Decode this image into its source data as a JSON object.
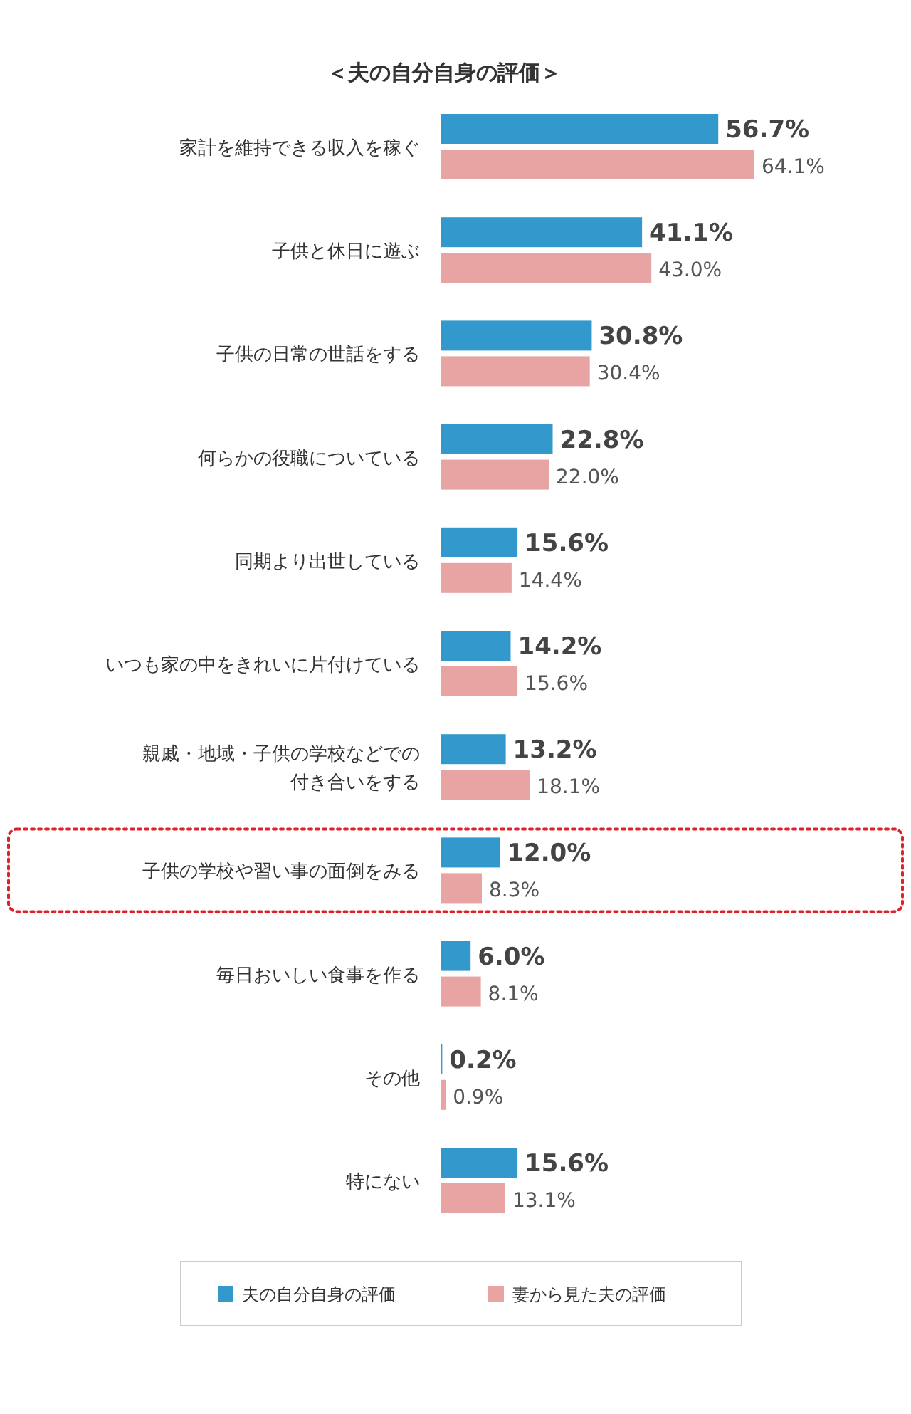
{
  "chart_data": {
    "type": "bar",
    "orientation": "horizontal",
    "title": "＜夫の自分自身の評価＞",
    "categories": [
      "家計を維持できる収入を稼ぐ",
      "子供と休日に遊ぶ",
      "子供の日常の世話をする",
      "何らかの役職についている",
      "同期より出世している",
      "いつも家の中をきれいに片付けている",
      "親戚・地域・子供の学校などでの付き合いをする",
      "子供の学校や習い事の面倒をみる",
      "毎日おいしい食事を作る",
      "その他",
      "特にない"
    ],
    "series": [
      {
        "name": "夫の自分自身の評価",
        "color": "#3399cc",
        "values": [
          56.7,
          41.1,
          30.8,
          22.8,
          15.6,
          14.2,
          13.2,
          12.0,
          6.0,
          0.2,
          15.6
        ],
        "value_labels": [
          "56.7%",
          "41.1%",
          "30.8%",
          "22.8%",
          "15.6%",
          "14.2%",
          "13.2%",
          "12.0%",
          "6.0%",
          "0.2%",
          "15.6%"
        ]
      },
      {
        "name": "妻から見た夫の評価",
        "color": "#e8a3a3",
        "values": [
          64.1,
          43.0,
          30.4,
          22.0,
          14.4,
          15.6,
          18.1,
          8.3,
          8.1,
          0.9,
          13.1
        ],
        "value_labels": [
          "64.1%",
          "43.0%",
          "30.4%",
          "22.0%",
          "14.4%",
          "15.6%",
          "18.1%",
          "8.3%",
          "8.1%",
          "0.9%",
          "13.1%"
        ]
      }
    ],
    "legend": "bottom"
  }
}
